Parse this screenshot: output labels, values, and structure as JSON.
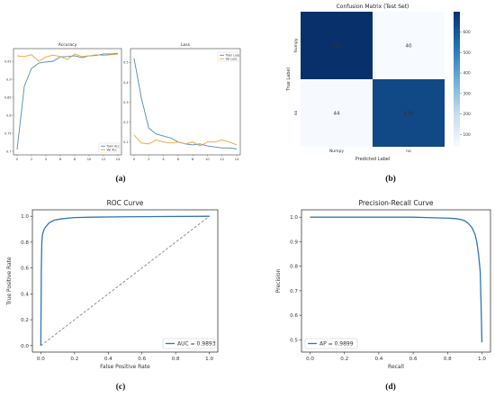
{
  "captions": [
    "(a)",
    "(b)",
    "(c)",
    "(d)"
  ],
  "colors": {
    "train": "#4c8ab8",
    "val": "#f2a13a",
    "roc": "#2e75b6",
    "pr": "#2e75b6",
    "cm_dark": "#08306b",
    "cm_light": "#f7fbff",
    "diag": "#777777"
  },
  "chart_data": [
    {
      "type": "line",
      "title": "Accuracy",
      "x": [
        0,
        1,
        2,
        3,
        4,
        5,
        6,
        7,
        8,
        9,
        10,
        11,
        12,
        13,
        14
      ],
      "xticks": [
        0,
        2,
        4,
        6,
        8,
        10,
        12,
        14
      ],
      "yticks": [
        0.7,
        0.75,
        0.8,
        0.85,
        0.9,
        0.95
      ],
      "ylim": [
        0.69,
        0.985
      ],
      "series": [
        {
          "name": "Train Acc",
          "values": [
            0.705,
            0.88,
            0.93,
            0.945,
            0.948,
            0.95,
            0.962,
            0.963,
            0.965,
            0.96,
            0.965,
            0.966,
            0.97,
            0.97,
            0.972
          ]
        },
        {
          "name": "Val Acc",
          "values": [
            0.965,
            0.963,
            0.968,
            0.95,
            0.962,
            0.967,
            0.963,
            0.955,
            0.97,
            0.963,
            0.965,
            0.968,
            0.966,
            0.968,
            0.97
          ]
        }
      ],
      "legend": "bottom-right"
    },
    {
      "type": "line",
      "title": "Loss",
      "x": [
        0,
        1,
        2,
        3,
        4,
        5,
        6,
        7,
        8,
        9,
        10,
        11,
        12,
        13,
        14
      ],
      "xticks": [
        0,
        2,
        4,
        6,
        8,
        10,
        12,
        14
      ],
      "yticks": [
        0.1,
        0.2,
        0.3,
        0.4,
        0.5
      ],
      "ylim": [
        0.035,
        0.57
      ],
      "series": [
        {
          "name": "Train Loss",
          "values": [
            0.52,
            0.32,
            0.17,
            0.14,
            0.13,
            0.12,
            0.1,
            0.09,
            0.085,
            0.09,
            0.08,
            0.075,
            0.07,
            0.07,
            0.065
          ]
        },
        {
          "name": "Val Loss",
          "values": [
            0.135,
            0.095,
            0.09,
            0.11,
            0.1,
            0.095,
            0.1,
            0.09,
            0.1,
            0.08,
            0.1,
            0.1,
            0.11,
            0.1,
            0.085
          ]
        }
      ],
      "legend": "top-right"
    },
    {
      "type": "heatmap",
      "title": "Confusion Matrix (Test Set)",
      "xlabel": "Predicted Label",
      "ylabel": "True Label",
      "x_categories": [
        "Numpy",
        "no"
      ],
      "y_categories": [
        "Numpy",
        "no"
      ],
      "values": [
        [
          699,
          40
        ],
        [
          44,
          639
        ]
      ],
      "colorbar_ticks": [
        100,
        200,
        300,
        400,
        500,
        600
      ],
      "colorbar_range": [
        40,
        699
      ]
    },
    {
      "type": "line",
      "title": "ROC Curve",
      "xlabel": "False Positive Rate",
      "ylabel": "True Positive Rate",
      "xlim": [
        0,
        1
      ],
      "ylim": [
        0,
        1
      ],
      "ticks": [
        "0.0",
        "0.2",
        "0.4",
        "0.6",
        "0.8",
        "1.0"
      ],
      "series": [
        {
          "name": "AUC = 0.9893",
          "x": [
            0,
            0.003,
            0.006,
            0.01,
            0.015,
            0.02,
            0.03,
            0.05,
            0.08,
            0.12,
            0.2,
            0.3,
            0.5,
            0.7,
            1.0
          ],
          "y": [
            0,
            0.6,
            0.8,
            0.86,
            0.88,
            0.9,
            0.92,
            0.95,
            0.97,
            0.98,
            0.99,
            0.993,
            0.996,
            0.998,
            1.0
          ]
        }
      ],
      "baseline": {
        "x": [
          0,
          1
        ],
        "y": [
          0,
          1
        ]
      },
      "legend": "bottom-right"
    },
    {
      "type": "line",
      "title": "Precision-Recall Curve",
      "xlabel": "Recall",
      "ylabel": "Precision",
      "xlim": [
        -0.05,
        1.05
      ],
      "ylim": [
        0.45,
        1.03
      ],
      "xticks": [
        "0.0",
        "0.2",
        "0.4",
        "0.6",
        "0.8",
        "1.0"
      ],
      "yticks": [
        "0.5",
        "0.6",
        "0.7",
        "0.8",
        "0.9",
        "1.0"
      ],
      "series": [
        {
          "name": "AP = 0.9899",
          "x": [
            0.0,
            0.2,
            0.4,
            0.6,
            0.7,
            0.8,
            0.85,
            0.88,
            0.9,
            0.92,
            0.94,
            0.96,
            0.97,
            0.98,
            0.99,
            0.995,
            1.0
          ],
          "y": [
            1.0,
            1.0,
            1.0,
            1.0,
            0.998,
            0.996,
            0.994,
            0.99,
            0.985,
            0.975,
            0.96,
            0.93,
            0.9,
            0.85,
            0.78,
            0.65,
            0.49
          ]
        }
      ],
      "legend": "bottom-left"
    }
  ]
}
